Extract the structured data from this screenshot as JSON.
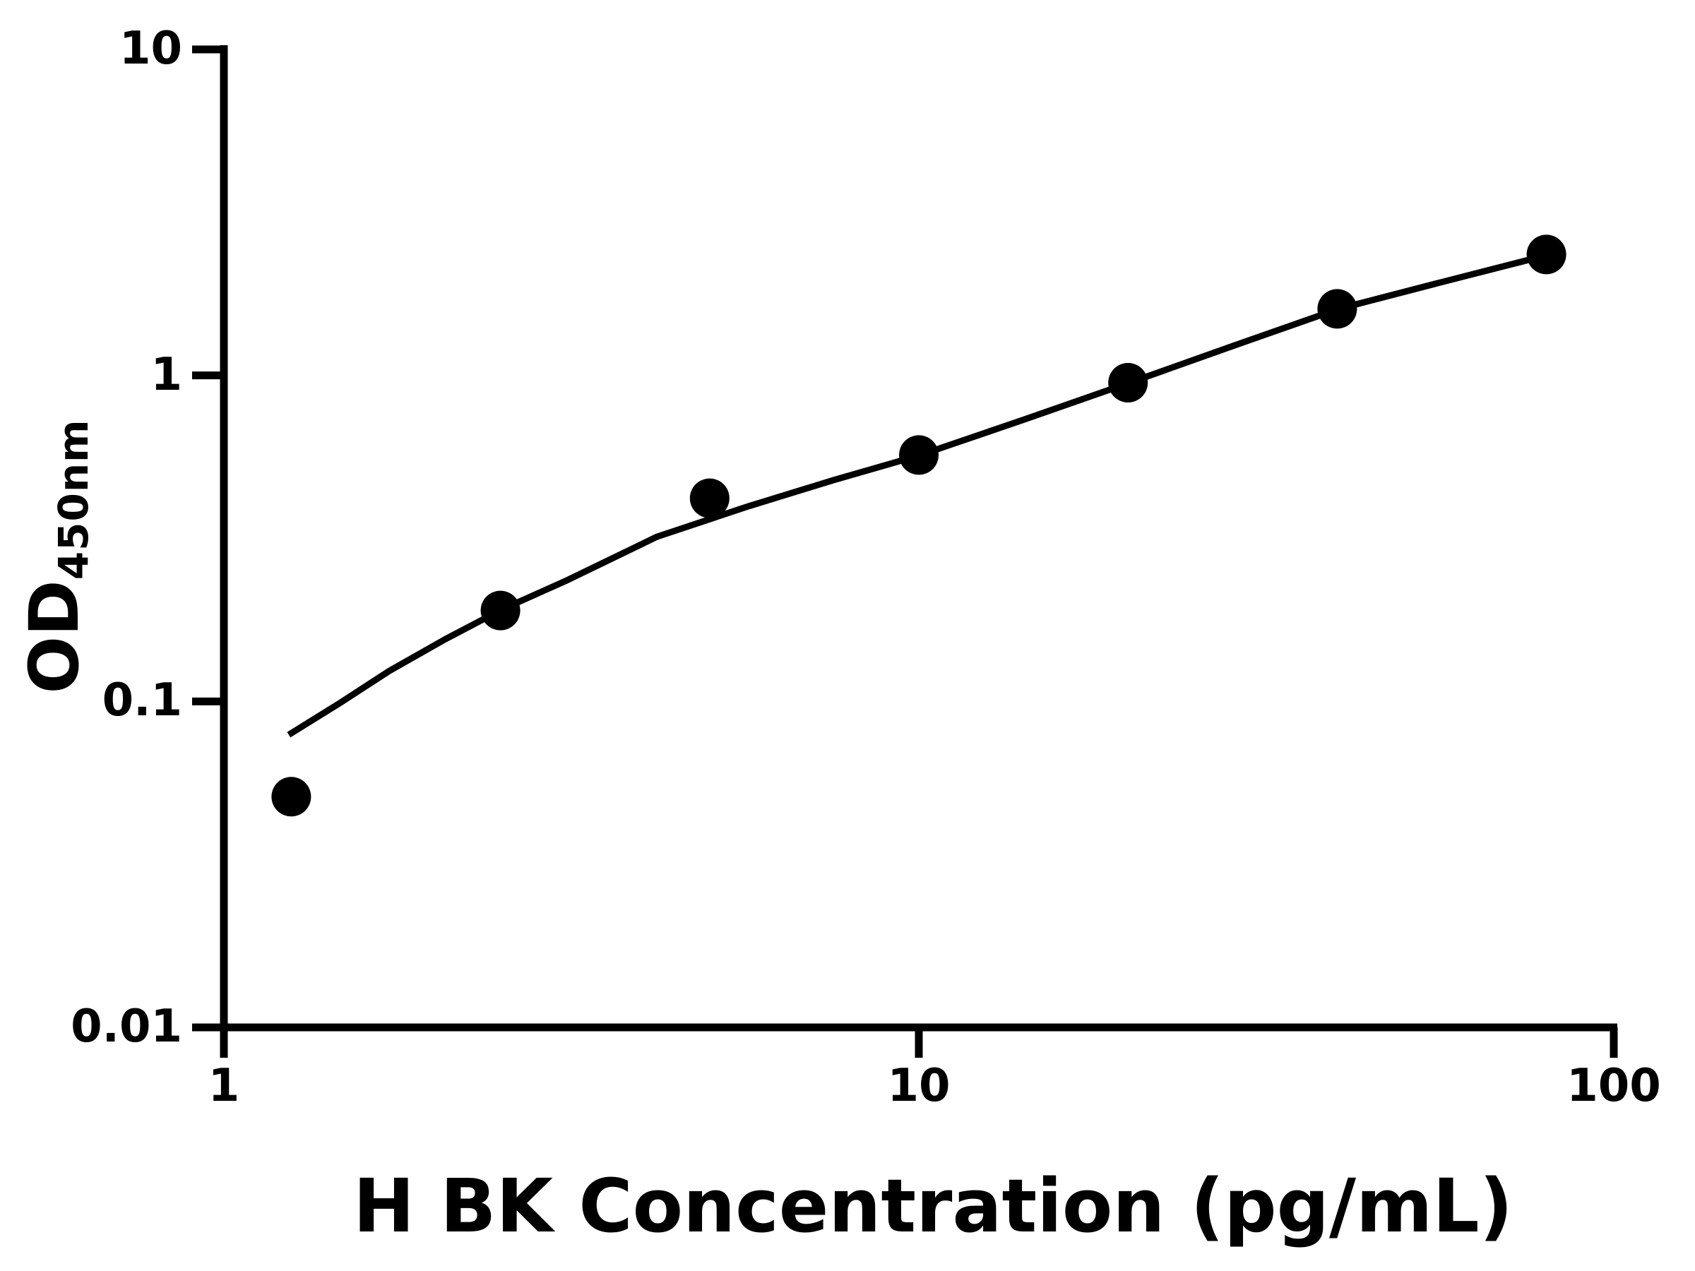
{
  "figure": {
    "background": "#ffffff",
    "ink_color": "#000000"
  },
  "chart_data": {
    "type": "scatter",
    "title": "",
    "xlabel": "H BK Concentration (pg/mL)",
    "ylabel": "OD450nm",
    "ylabel_main": "OD",
    "ylabel_sub": "450nm",
    "x_scale": "log",
    "y_scale": "log",
    "xlim": [
      1,
      100
    ],
    "ylim": [
      0.01,
      10
    ],
    "grid": false,
    "legend": "none",
    "axis_color": "#000000",
    "x_ticks": [
      {
        "value": 1,
        "label": "1"
      },
      {
        "value": 10,
        "label": "10"
      },
      {
        "value": 100,
        "label": "100"
      }
    ],
    "y_ticks": [
      {
        "value": 10,
        "label": "10"
      },
      {
        "value": 1,
        "label": "1"
      },
      {
        "value": 0.1,
        "label": "0.1"
      },
      {
        "value": 0.01,
        "label": "0.01"
      }
    ],
    "series": [
      {
        "name": "standard_points",
        "kind": "scatter",
        "marker": "filled-circle",
        "marker_radius_px": 28,
        "color": "#000000",
        "points": [
          [
            1.25,
            0.051
          ],
          [
            2.5,
            0.19
          ],
          [
            5,
            0.42
          ],
          [
            10,
            0.57
          ],
          [
            20,
            0.95
          ],
          [
            40,
            1.6
          ],
          [
            80,
            2.35
          ]
        ]
      },
      {
        "name": "fitted_curve",
        "kind": "line",
        "stroke_width_px": 9,
        "color": "#000000",
        "points": [
          [
            1.24,
            0.079
          ],
          [
            1.47,
            0.099
          ],
          [
            1.73,
            0.124
          ],
          [
            2.08,
            0.155
          ],
          [
            2.52,
            0.192
          ],
          [
            3.1,
            0.234
          ],
          [
            4.2,
            0.32
          ],
          [
            5.69,
            0.397
          ],
          [
            7.53,
            0.477
          ],
          [
            10.0,
            0.568
          ],
          [
            14.2,
            0.733
          ],
          [
            20.0,
            0.946
          ],
          [
            28.3,
            1.231
          ],
          [
            40.2,
            1.6
          ],
          [
            56.4,
            1.93
          ],
          [
            80.3,
            2.34
          ]
        ]
      }
    ]
  }
}
